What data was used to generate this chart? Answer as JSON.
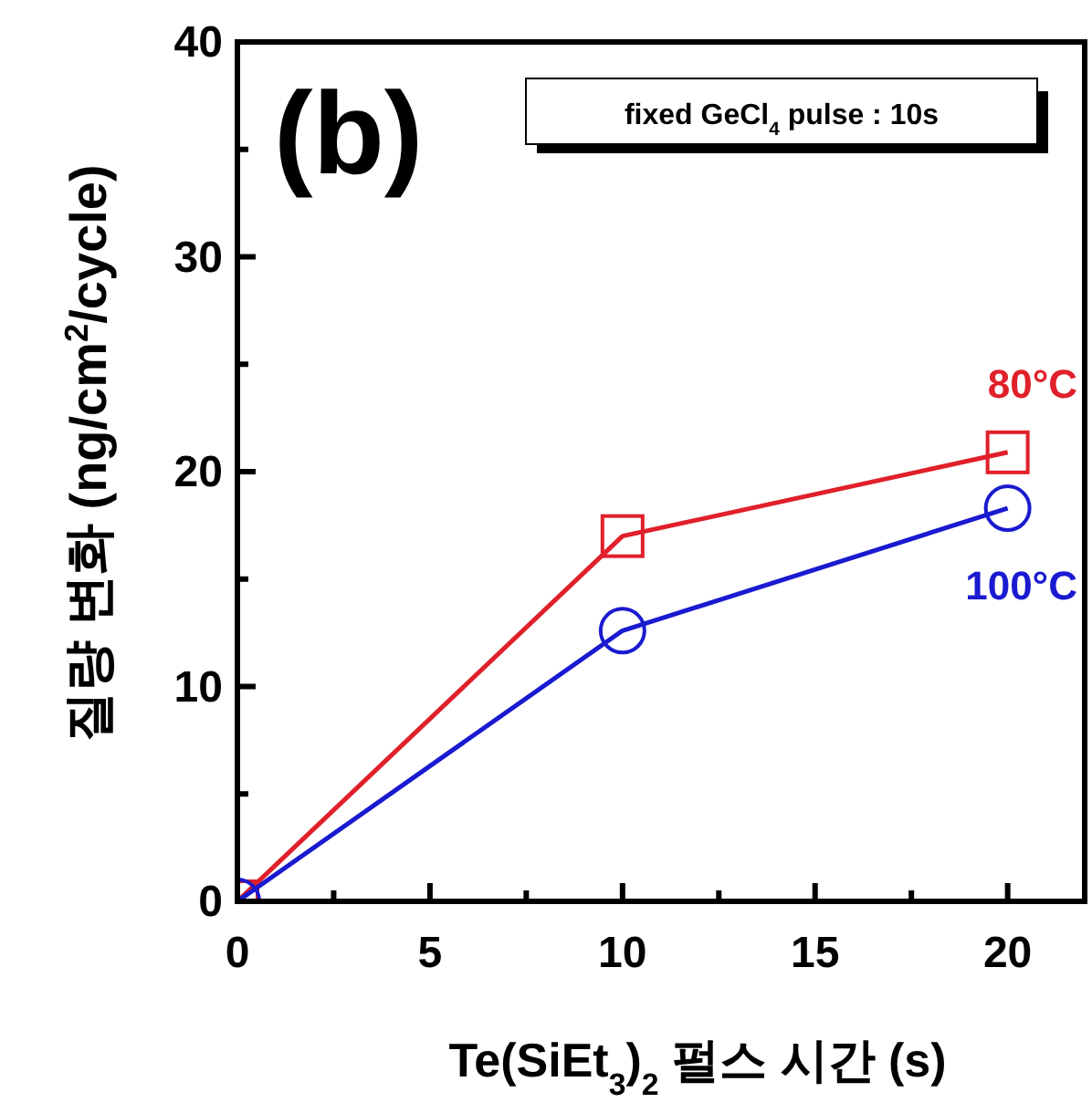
{
  "chart_data": {
    "type": "line",
    "xlabel": "Te(SiEt$_{3}$)$_{2}$ 펄스 시간 (s)",
    "ylabel": "질량 변화 (ng/cm$^{2}$/cycle)",
    "x": [
      0,
      10,
      20
    ],
    "series": [
      {
        "name": "80°C",
        "color": "#e0202a",
        "marker": "square",
        "values": [
          0,
          17,
          20.9
        ]
      },
      {
        "name": "100°C",
        "color": "#1a1ad0",
        "marker": "circle",
        "values": [
          0,
          12.6,
          18.3
        ]
      }
    ],
    "xlim": [
      0,
      22
    ],
    "xticks": [
      0,
      {
        "value": 2.5,
        "label": null
      },
      5,
      {
        "value": 7.5,
        "label": null
      },
      10,
      {
        "value": 12.5,
        "label": null
      },
      15,
      {
        "value": 17.5,
        "label": null
      },
      20
    ],
    "ylim": [
      0,
      40
    ],
    "yticks": [
      0,
      {
        "value": 5,
        "label": null
      },
      10,
      {
        "value": 15,
        "label": null
      },
      20,
      {
        "value": 25,
        "label": null
      },
      30,
      {
        "value": 35,
        "label": null
      },
      40
    ],
    "annotations": [
      "(b)",
      "fixed GeCl$_{4}$ pulse : 10s"
    ],
    "grid": false
  }
}
